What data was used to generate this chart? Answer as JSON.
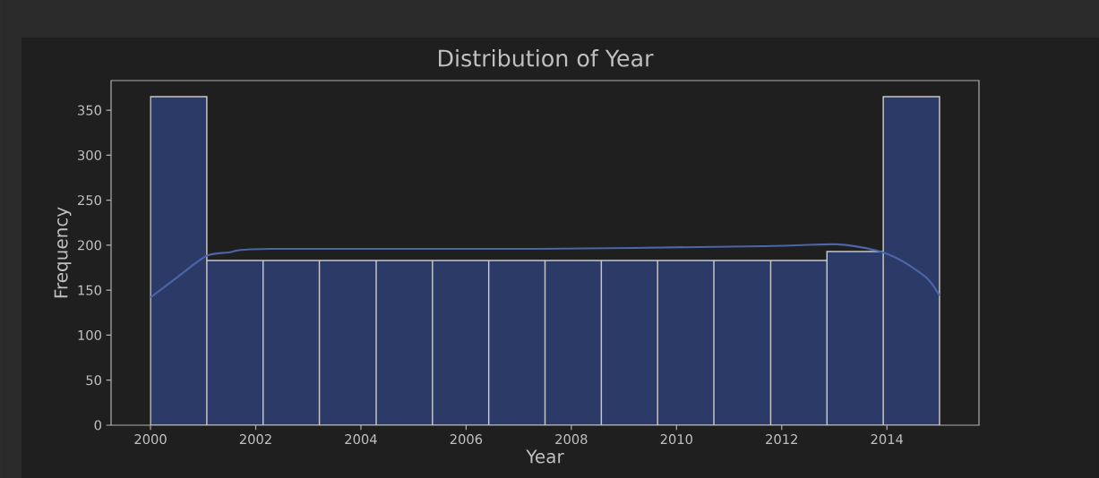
{
  "chart_data": {
    "type": "histogram",
    "title": "Distribution of Year",
    "xlabel": "Year",
    "ylabel": "Frequency",
    "bins": [
      2000,
      2001.07,
      2002.14,
      2003.21,
      2004.29,
      2005.36,
      2006.43,
      2007.5,
      2008.57,
      2009.64,
      2010.71,
      2011.79,
      2012.86,
      2013.93,
      2015
    ],
    "values": [
      365,
      183,
      183,
      183,
      183,
      183,
      183,
      183,
      183,
      183,
      183,
      183,
      193,
      365
    ],
    "color": "#2b3a67",
    "series": [
      {
        "type": "line",
        "color": "#4c64a8",
        "x": [
          2000,
          2000.5,
          2001.06,
          2001.5,
          2002.26,
          2007.39,
          2011.67,
          2013.04,
          2013.81,
          2014.24,
          2014.75,
          2015
        ],
        "values": [
          142,
          164,
          188,
          192,
          196,
          196,
          199,
          201,
          194,
          184,
          164,
          144
        ]
      }
    ],
    "xlim": [
      1999.25,
      2015.75
    ],
    "ylim": [
      0,
      383
    ],
    "xticks": [
      2000,
      2002,
      2004,
      2006,
      2008,
      2010,
      2012,
      2014
    ],
    "yticks": [
      0,
      50,
      100,
      150,
      200,
      250,
      300,
      350
    ],
    "grid": false
  }
}
